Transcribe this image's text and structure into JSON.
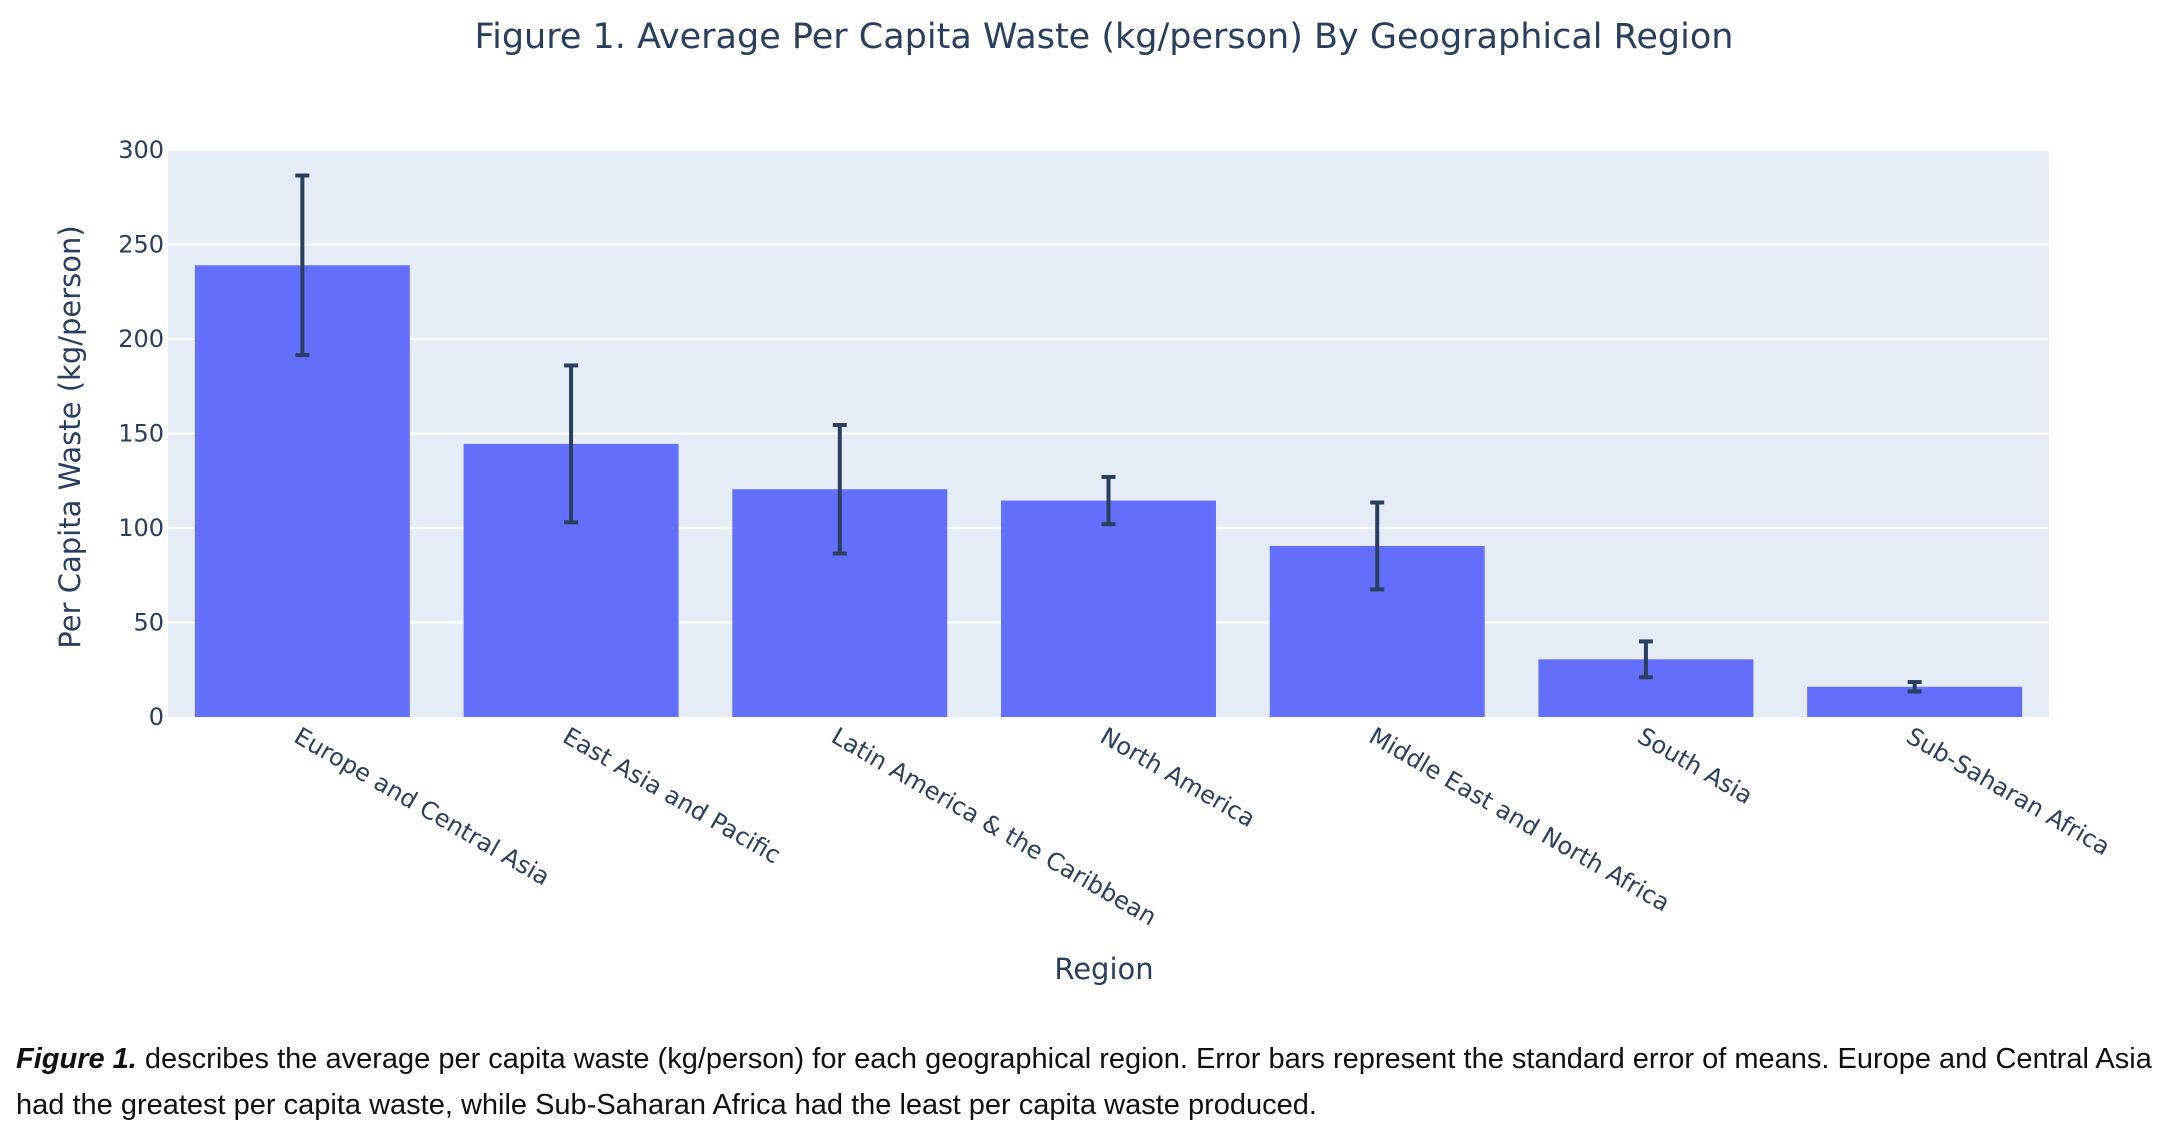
{
  "chart_data": {
    "type": "bar",
    "title": "Figure 1. Average Per Capita Waste (kg/person) By Geographical Region",
    "xlabel": "Region",
    "ylabel": "Per Capita Waste (kg/person)",
    "categories": [
      "Europe and Central Asia",
      "East Asia and Pacific",
      "Latin America & the Caribbean",
      "North America",
      "Middle East and North Africa",
      "South Asia",
      "Sub-Saharan Africa"
    ],
    "values": [
      239,
      144.5,
      120.5,
      114.5,
      90.5,
      30.5,
      16
    ],
    "error": [
      47.5,
      41.5,
      34,
      12.5,
      23,
      9.5,
      2.5
    ],
    "ylim": [
      0,
      300
    ],
    "yticks": [
      0,
      50,
      100,
      150,
      200,
      250,
      300
    ],
    "grid": true,
    "colors": {
      "bar": "#636efa",
      "error_bar": "#2a3f5f",
      "plot_background": "#e5ecf6",
      "gridline": "#ffffff",
      "text": "#2a3f5f"
    }
  },
  "caption": {
    "lead": "Figure 1.",
    "text": " describes the average per capita waste (kg/person) for each geographical region. Error bars represent the standard error of means. Europe and Central Asia had the greatest per capita waste, while Sub-Saharan Africa had the least per capita waste produced."
  }
}
